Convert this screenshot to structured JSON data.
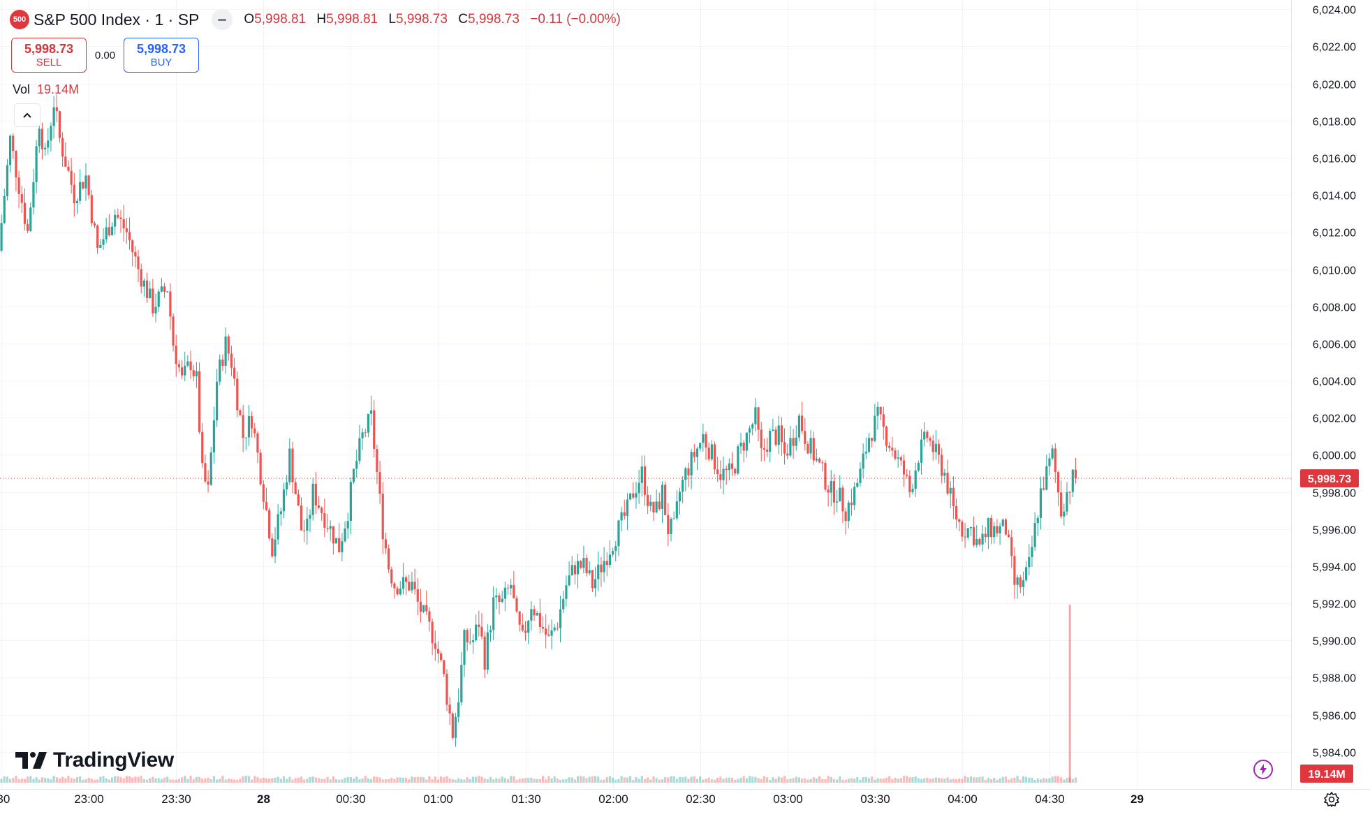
{
  "header": {
    "logo_text": "500",
    "title": "S&P 500 Index · 1 · SP",
    "open_label": "O",
    "open": "5,998.81",
    "high_label": "H",
    "high": "5,998.81",
    "low_label": "L",
    "low": "5,998.73",
    "close_label": "C",
    "close": "5,998.73",
    "change": "−0.11 (−0.00%)"
  },
  "trade": {
    "sell_price": "5,998.73",
    "sell_label": "SELL",
    "spread": "0.00",
    "buy_price": "5,998.73",
    "buy_label": "BUY"
  },
  "volume": {
    "label": "Vol",
    "value": "19.14M"
  },
  "brand": {
    "name": "TradingView"
  },
  "colors": {
    "up": "#26a69a",
    "down": "#ef5350",
    "price_tag": "#e0363d",
    "volume_tag": "#e0363d"
  },
  "chart_data": {
    "type": "candlestick",
    "interval_minutes": 1,
    "y_axis": {
      "range": [
        5982.0,
        6024.5
      ],
      "ticks": [
        5984,
        5986,
        5988,
        5990,
        5992,
        5994,
        5996,
        5998,
        6000,
        6002,
        6004,
        6006,
        6008,
        6010,
        6012,
        6014,
        6016,
        6018,
        6020,
        6022,
        6024
      ],
      "tick_labels": [
        "5,984.00",
        "5,986.00",
        "5,988.00",
        "5,990.00",
        "5,992.00",
        "5,994.00",
        "5,996.00",
        "5,998.00",
        "6,000.00",
        "6,002.00",
        "6,004.00",
        "6,006.00",
        "6,008.00",
        "6,010.00",
        "6,012.00",
        "6,014.00",
        "6,016.00",
        "6,018.00",
        "6,020.00",
        "6,022.00",
        "6,024.00"
      ]
    },
    "x_axis": {
      "range_minutes": [
        -90.5,
        353
      ],
      "ticks": [
        {
          "minute": -90,
          "label": ":30"
        },
        {
          "minute": -60,
          "label": "23:00"
        },
        {
          "minute": -30,
          "label": "23:30"
        },
        {
          "minute": 0,
          "label": "28"
        },
        {
          "minute": 30,
          "label": "00:30"
        },
        {
          "minute": 60,
          "label": "01:00"
        },
        {
          "minute": 90,
          "label": "01:30"
        },
        {
          "minute": 120,
          "label": "02:00"
        },
        {
          "minute": 150,
          "label": "02:30"
        },
        {
          "minute": 180,
          "label": "03:00"
        },
        {
          "minute": 210,
          "label": "03:30"
        },
        {
          "minute": 240,
          "label": "04:00"
        },
        {
          "minute": 270,
          "label": "04:30"
        },
        {
          "minute": 300,
          "label": "29"
        }
      ]
    },
    "last_price": {
      "value": 5998.73,
      "label": "5,998.73"
    },
    "last_volume": {
      "label": "19.14M"
    },
    "waypoints": [
      [
        -90,
        6011
      ],
      [
        -86,
        6017
      ],
      [
        -80,
        6012
      ],
      [
        -76,
        6018
      ],
      [
        -74,
        6016
      ],
      [
        -71,
        6019
      ],
      [
        -69,
        6017
      ],
      [
        -64,
        6014
      ],
      [
        -60,
        6015
      ],
      [
        -56,
        6011
      ],
      [
        -50,
        6013
      ],
      [
        -46,
        6012
      ],
      [
        -42,
        6010
      ],
      [
        -37,
        6008
      ],
      [
        -32,
        6009
      ],
      [
        -30,
        6006
      ],
      [
        -27,
        6004
      ],
      [
        -24,
        6005
      ],
      [
        -22,
        6004
      ],
      [
        -20,
        5999
      ],
      [
        -18,
        5998
      ],
      [
        -15,
        6004
      ],
      [
        -12,
        6006
      ],
      [
        -10,
        6005
      ],
      [
        -8,
        6003
      ],
      [
        -6,
        6001
      ],
      [
        -3,
        6002
      ],
      [
        -1,
        6000
      ],
      [
        2,
        5997
      ],
      [
        4,
        5995
      ],
      [
        7,
        5997
      ],
      [
        10,
        6000
      ],
      [
        12,
        5998
      ],
      [
        14,
        5996
      ],
      [
        16,
        5996
      ],
      [
        18,
        5998
      ],
      [
        21,
        5997
      ],
      [
        24,
        5996
      ],
      [
        27,
        5995
      ],
      [
        30,
        5997
      ],
      [
        32,
        5999
      ],
      [
        35,
        6001
      ],
      [
        38,
        6002
      ],
      [
        40,
        5999
      ],
      [
        42,
        5996
      ],
      [
        44,
        5994
      ],
      [
        46,
        5993
      ],
      [
        49,
        5993
      ],
      [
        52,
        5993
      ],
      [
        54,
        5992
      ],
      [
        57,
        5991
      ],
      [
        60,
        5990
      ],
      [
        63,
        5988
      ],
      [
        65,
        5986
      ],
      [
        66,
        5985
      ],
      [
        68,
        5987
      ],
      [
        70,
        5990
      ],
      [
        73,
        5990
      ],
      [
        75,
        5991
      ],
      [
        77,
        5989
      ],
      [
        80,
        5992
      ],
      [
        83,
        5992
      ],
      [
        86,
        5993
      ],
      [
        88,
        5991
      ],
      [
        90,
        5990
      ],
      [
        93,
        5992
      ],
      [
        96,
        5991
      ],
      [
        99,
        5990
      ],
      [
        102,
        5991
      ],
      [
        105,
        5993
      ],
      [
        108,
        5994
      ],
      [
        111,
        5994
      ],
      [
        114,
        5993
      ],
      [
        117,
        5994
      ],
      [
        120,
        5995
      ],
      [
        123,
        5996
      ],
      [
        126,
        5997
      ],
      [
        128,
        5998
      ],
      [
        131,
        5999
      ],
      [
        134,
        5997
      ],
      [
        136,
        5997
      ],
      [
        138,
        5998
      ],
      [
        140,
        5996
      ],
      [
        142,
        5996
      ],
      [
        144,
        5998
      ],
      [
        146,
        5999
      ],
      [
        149,
        6000
      ],
      [
        152,
        6001
      ],
      [
        155,
        6000
      ],
      [
        158,
        5999
      ],
      [
        160,
        5999
      ],
      [
        162,
        5999
      ],
      [
        164,
        6000
      ],
      [
        167,
        6001
      ],
      [
        170,
        6002
      ],
      [
        172,
        6000
      ],
      [
        175,
        6001
      ],
      [
        178,
        6001
      ],
      [
        180,
        6000
      ],
      [
        183,
        6001
      ],
      [
        185,
        6002
      ],
      [
        187,
        6001
      ],
      [
        190,
        6000
      ],
      [
        193,
        5999
      ],
      [
        196,
        5998
      ],
      [
        198,
        5998
      ],
      [
        201,
        5997
      ],
      [
        204,
        5998
      ],
      [
        206,
        5999
      ],
      [
        209,
        6001
      ],
      [
        212,
        6002
      ],
      [
        215,
        6001
      ],
      [
        218,
        6000
      ],
      [
        221,
        5999
      ],
      [
        223,
        5998
      ],
      [
        226,
        6000
      ],
      [
        229,
        6001
      ],
      [
        232,
        6000
      ],
      [
        235,
        5999
      ],
      [
        238,
        5997
      ],
      [
        241,
        5996
      ],
      [
        244,
        5996
      ],
      [
        247,
        5995
      ],
      [
        250,
        5996
      ],
      [
        253,
        5996
      ],
      [
        256,
        5996
      ],
      [
        259,
        5993
      ],
      [
        262,
        5993
      ],
      [
        264,
        5994
      ],
      [
        266,
        5996
      ],
      [
        268,
        5998
      ],
      [
        270,
        5999
      ],
      [
        272,
        6000
      ],
      [
        275,
        5997
      ],
      [
        277,
        5998
      ],
      [
        279,
        5998.7
      ]
    ],
    "volume_spike": {
      "minute": 277,
      "relative_height": 0.92
    }
  }
}
